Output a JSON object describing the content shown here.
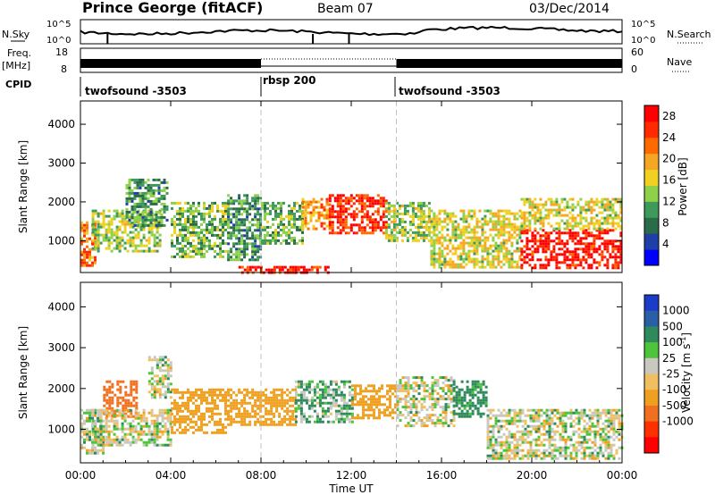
{
  "header": {
    "title": "Prince George (fitACF)",
    "beam": "Beam 07",
    "date": "03/Dec/2014"
  },
  "top_panels": {
    "nsky_label": "N.Sky",
    "nsearch_label": "N.Search",
    "nsky_ticks": [
      "10^5",
      "10^0"
    ],
    "nsearch_ticks": [
      "10^5",
      "10^0"
    ],
    "freq_label": "Freq.",
    "freq_unit": "[MHz]",
    "freq_ticks": [
      "18",
      "8"
    ],
    "nave_label": "Nave",
    "nave_ticks": [
      "60",
      "0"
    ],
    "cpid_label": "CPID",
    "cpid_segments": [
      {
        "label": "twofsound -3503",
        "start_hour": 0,
        "end_hour": 8
      },
      {
        "label": "rbsp 200",
        "start_hour": 8,
        "end_hour": 14
      },
      {
        "label": "twofsound -3503",
        "start_hour": 14,
        "end_hour": 24
      }
    ]
  },
  "colors": {
    "power_scale": [
      "#0000ff",
      "#1f3fa8",
      "#2a6b4a",
      "#3e9a5a",
      "#8fd04a",
      "#f0d020",
      "#f5a623",
      "#ff6a00",
      "#ff2a00",
      "#ff0000"
    ],
    "velocity_scale": [
      "#1a3cc8",
      "#2a5fa8",
      "#2e8a5a",
      "#4cc43c",
      "#c8c8c0",
      "#f0c060",
      "#f0a020",
      "#f07020",
      "#ff3000",
      "#ff0000"
    ]
  },
  "chart_data": [
    {
      "type": "heatmap",
      "name": "power",
      "xlabel": "Time UT",
      "ylabel": "Slant Range [km]",
      "xlim": [
        0,
        24
      ],
      "ylim": [
        180,
        4600
      ],
      "x_ticks": [
        "00:00",
        "04:00",
        "08:00",
        "12:00",
        "16:00",
        "20:00",
        "00:00"
      ],
      "x_tick_values": [
        0,
        4,
        8,
        12,
        16,
        20,
        24
      ],
      "y_ticks": [
        1000,
        2000,
        3000,
        4000
      ],
      "colorbar_label": "Power [dB]",
      "colorbar_ticks": [
        4,
        8,
        12,
        16,
        20,
        24,
        28
      ],
      "colorbar_range": [
        0,
        30
      ],
      "cpid_boundaries": [
        8,
        14
      ],
      "echo_regions": [
        {
          "t": [
            0,
            0.7
          ],
          "range": [
            350,
            1500
          ],
          "value": 22
        },
        {
          "t": [
            0.5,
            3.5
          ],
          "range": [
            700,
            1800
          ],
          "value": 14
        },
        {
          "t": [
            2.0,
            3.8
          ],
          "range": [
            1400,
            2600
          ],
          "value": 10
        },
        {
          "t": [
            4.0,
            6.5
          ],
          "range": [
            600,
            2000
          ],
          "value": 12
        },
        {
          "t": [
            6.5,
            8.0
          ],
          "range": [
            500,
            2200
          ],
          "value": 10
        },
        {
          "t": [
            8.0,
            9.8
          ],
          "range": [
            900,
            2000
          ],
          "value": 12
        },
        {
          "t": [
            9.8,
            11.0
          ],
          "range": [
            1300,
            2100
          ],
          "value": 20
        },
        {
          "t": [
            11.0,
            13.5
          ],
          "range": [
            1200,
            2200
          ],
          "value": 26
        },
        {
          "t": [
            13.5,
            15.5
          ],
          "range": [
            1000,
            2000
          ],
          "value": 14
        },
        {
          "t": [
            15.5,
            19.5
          ],
          "range": [
            300,
            1800
          ],
          "value": 16
        },
        {
          "t": [
            19.5,
            24
          ],
          "range": [
            300,
            1300
          ],
          "value": 28
        },
        {
          "t": [
            19.5,
            24
          ],
          "range": [
            1300,
            2100
          ],
          "value": 16
        },
        {
          "t": [
            7.0,
            11.0
          ],
          "range": [
            180,
            350
          ],
          "value": 28
        }
      ]
    },
    {
      "type": "heatmap",
      "name": "velocity",
      "xlabel": "Time UT",
      "ylabel": "Slant Range [km]",
      "xlim": [
        0,
        24
      ],
      "ylim": [
        180,
        4600
      ],
      "x_ticks": [
        "00:00",
        "04:00",
        "08:00",
        "12:00",
        "16:00",
        "20:00",
        "00:00"
      ],
      "x_tick_values": [
        0,
        4,
        8,
        12,
        16,
        20,
        24
      ],
      "y_ticks": [
        1000,
        2000,
        3000,
        4000
      ],
      "colorbar_label": "Velocity [m s^-1]",
      "colorbar_ticks": [
        "1000",
        "500",
        "100",
        "25",
        "-25",
        "-100",
        "-500",
        "-1000"
      ],
      "cpid_boundaries": [
        8,
        14
      ],
      "echo_regions": [
        {
          "t": [
            0,
            1.0
          ],
          "range": [
            400,
            1500
          ],
          "value": 0
        },
        {
          "t": [
            1.0,
            2.5
          ],
          "range": [
            1300,
            2200
          ],
          "value": -600
        },
        {
          "t": [
            0.5,
            4.0
          ],
          "range": [
            600,
            1500
          ],
          "value": 0
        },
        {
          "t": [
            3.0,
            4.0
          ],
          "range": [
            1800,
            2800
          ],
          "value": 0
        },
        {
          "t": [
            4.0,
            6.5
          ],
          "range": [
            900,
            2000
          ],
          "value": -200
        },
        {
          "t": [
            6.5,
            9.5
          ],
          "range": [
            1100,
            2000
          ],
          "value": -150
        },
        {
          "t": [
            9.5,
            12.0
          ],
          "range": [
            1200,
            2200
          ],
          "value": 50
        },
        {
          "t": [
            12.0,
            14.0
          ],
          "range": [
            1300,
            2100
          ],
          "value": -150
        },
        {
          "t": [
            14.0,
            16.5
          ],
          "range": [
            1100,
            2300
          ],
          "value": 0
        },
        {
          "t": [
            16.5,
            18.0
          ],
          "range": [
            1300,
            2200
          ],
          "value": 120
        },
        {
          "t": [
            18.0,
            24
          ],
          "range": [
            300,
            1500
          ],
          "value": 0
        }
      ]
    }
  ]
}
